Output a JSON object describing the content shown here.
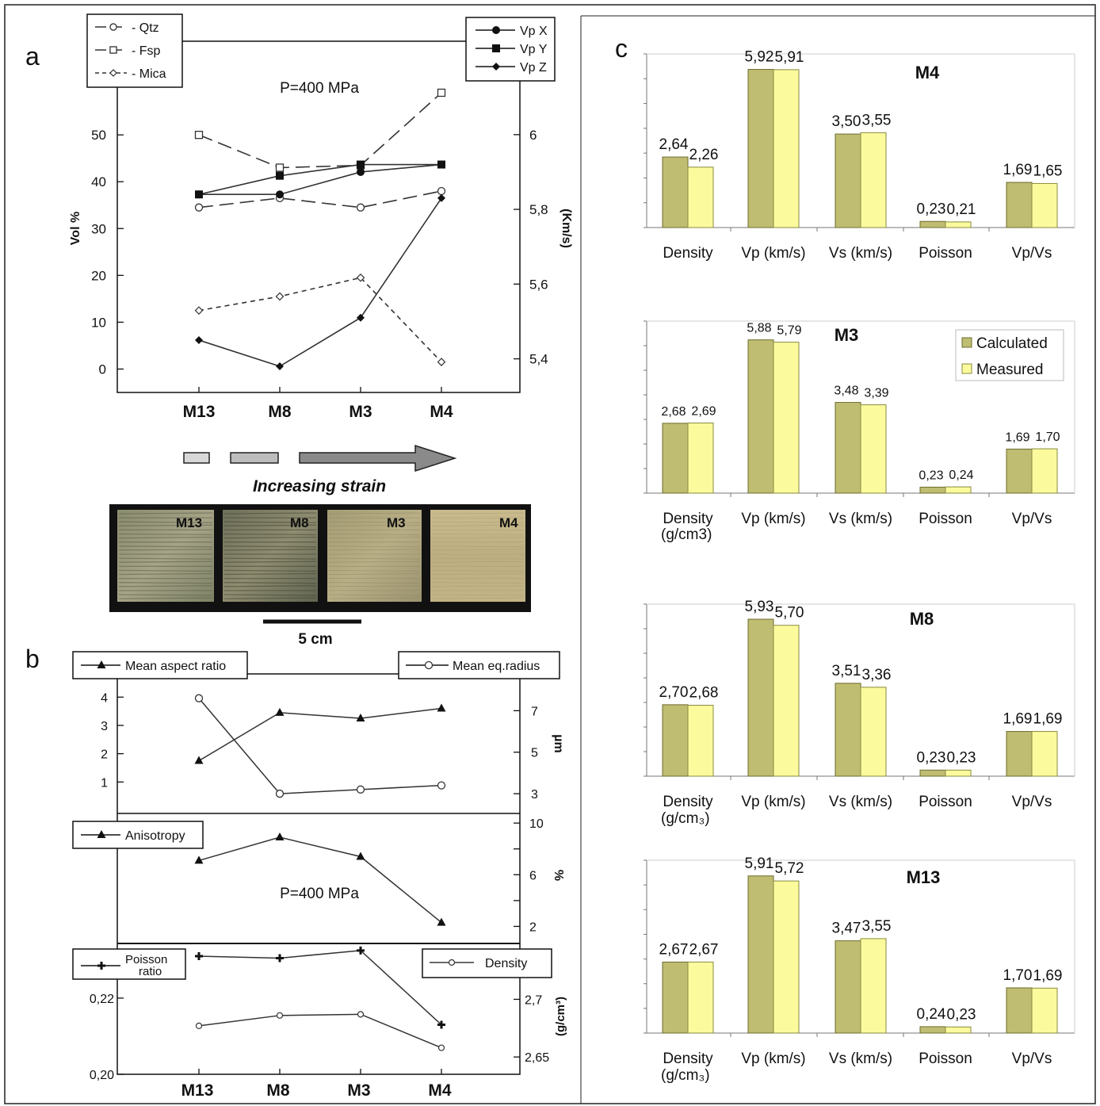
{
  "colors": {
    "calculated": "#bfbd72",
    "measured": "#fbfb9e",
    "calc_stroke": "#6d6b2c",
    "meas_stroke": "#8a8a40"
  },
  "panel_labels": {
    "a": "a",
    "b": "b",
    "c": "c"
  },
  "samples": [
    "M13",
    "M8",
    "M3",
    "M4"
  ],
  "strain_label": "Increasing strain",
  "scale_label": "5 cm",
  "photo_labels": [
    "M13",
    "M8",
    "M3",
    "M4"
  ],
  "chart_data": [
    {
      "id": "a",
      "type": "line",
      "categories": [
        "M13",
        "M8",
        "M3",
        "M4"
      ],
      "annotation": "P=400 MPa",
      "ylabel": "Vol %",
      "ylim": [
        -5,
        70
      ],
      "yticks": [
        0,
        10,
        20,
        30,
        40,
        50
      ],
      "y2label": "(Km/s)",
      "y2lim": [
        5.31,
        6.25
      ],
      "y2ticks": [
        "6",
        "5,8",
        "5,6",
        "5,4"
      ],
      "legend_left": [
        "- Qtz",
        "- Fsp",
        "- Mica"
      ],
      "legend_right": [
        "Vp X",
        "Vp Y",
        "Vp Z"
      ],
      "series": [
        {
          "name": "- Qtz",
          "axis": "left",
          "marker": "open-circle",
          "dash": "long",
          "values": [
            34.5,
            36.5,
            34.5,
            38
          ]
        },
        {
          "name": "- Fsp",
          "axis": "left",
          "marker": "open-square",
          "dash": "long",
          "values": [
            50,
            43,
            43.5,
            59
          ]
        },
        {
          "name": "- Mica",
          "axis": "left",
          "marker": "open-diamond",
          "dash": "short",
          "values": [
            12.5,
            15.5,
            19.5,
            1.5
          ]
        },
        {
          "name": "Vp X",
          "axis": "right",
          "marker": "circle",
          "dash": "solid",
          "values": [
            5.84,
            5.84,
            5.9,
            5.92
          ]
        },
        {
          "name": "Vp Y",
          "axis": "right",
          "marker": "square",
          "dash": "solid",
          "values": [
            5.84,
            5.89,
            5.92,
            5.92
          ]
        },
        {
          "name": "Vp Z",
          "axis": "right",
          "marker": "diamond",
          "dash": "solid",
          "values": [
            5.45,
            5.38,
            5.51,
            5.83
          ]
        }
      ]
    },
    {
      "id": "b1",
      "type": "line",
      "categories": [
        "M13",
        "M8",
        "M3",
        "M4"
      ],
      "ylim": [
        0,
        4.4
      ],
      "yticks": [
        1,
        2,
        3,
        4
      ],
      "y2label": "µm",
      "y2lim": [
        2.2,
        8.2
      ],
      "y2ticks": [
        3,
        5,
        7
      ],
      "legend_left": [
        "Mean aspect ratio"
      ],
      "legend_right": [
        "Mean eq.radius"
      ],
      "series": [
        {
          "name": "Mean aspect ratio",
          "axis": "left",
          "marker": "triangle",
          "values": [
            1.75,
            3.45,
            3.25,
            3.6
          ]
        },
        {
          "name": "Mean eq.radius",
          "axis": "right",
          "marker": "open-circle",
          "values": [
            7.6,
            3.0,
            3.2,
            3.4
          ]
        }
      ]
    },
    {
      "id": "b2",
      "type": "line",
      "categories": [
        "M13",
        "M8",
        "M3",
        "M4"
      ],
      "annotation": "P=400 MPa",
      "y2label": "%",
      "y2lim": [
        0.8,
        10.5
      ],
      "y2ticks": [
        10,
        6,
        2
      ],
      "legend_left": [
        "Anisotropy"
      ],
      "series": [
        {
          "name": "Anisotropy",
          "axis": "right",
          "marker": "triangle",
          "values": [
            7.1,
            8.9,
            7.4,
            2.3
          ]
        }
      ]
    },
    {
      "id": "b3",
      "type": "line",
      "categories": [
        "M13",
        "M8",
        "M3",
        "M4"
      ],
      "ylim": [
        0.2,
        0.2333
      ],
      "yticks": [
        "0,22",
        "0,20"
      ],
      "y2label": "(g/cm³)",
      "y2lim": [
        2.635,
        2.745
      ],
      "y2ticks": [
        "2,7",
        "2,65"
      ],
      "legend_left": [
        "Poisson",
        "ratio"
      ],
      "legend_right": [
        "Density"
      ],
      "series": [
        {
          "name": "Poisson ratio",
          "axis": "left",
          "marker": "cross",
          "values": [
            0.231,
            0.2305,
            0.2325,
            0.213
          ]
        },
        {
          "name": "Density",
          "axis": "right",
          "marker": "small-open-circle",
          "values": [
            2.677,
            2.686,
            2.687,
            2.658
          ]
        }
      ]
    },
    {
      "id": "c-M4",
      "type": "bar",
      "title": "M4",
      "categories": [
        "Density",
        "Vp (km/s)",
        "Vs (km/s)",
        "Poisson",
        "Vp/Vs"
      ],
      "category_sub": "",
      "series": [
        {
          "name": "Calculated",
          "values": [
            2.64,
            5.92,
            3.5,
            0.23,
            1.69
          ]
        },
        {
          "name": "Measured",
          "values": [
            2.26,
            5.91,
            3.55,
            0.21,
            1.65
          ]
        }
      ],
      "labels": [
        [
          "2,64",
          "2,26"
        ],
        [
          "5,92",
          "5,91"
        ],
        [
          "3,50",
          "3,55"
        ],
        [
          "0,23",
          "0,21"
        ],
        [
          "1,69",
          "1,65"
        ]
      ]
    },
    {
      "id": "c-M3",
      "type": "bar",
      "title": "M3",
      "categories": [
        "Density",
        "Vp (km/s)",
        "Vs (km/s)",
        "Poisson",
        "Vp/Vs"
      ],
      "category_sub": "(g/cm3)",
      "legend": [
        "Calculated",
        "Measured"
      ],
      "series": [
        {
          "name": "Calculated",
          "values": [
            2.68,
            5.88,
            3.48,
            0.23,
            1.69
          ]
        },
        {
          "name": "Measured",
          "values": [
            2.69,
            5.79,
            3.39,
            0.24,
            1.7
          ]
        }
      ],
      "labels": [
        [
          "2,68",
          "2,69"
        ],
        [
          "5,88",
          "5,79"
        ],
        [
          "3,48",
          "3,39"
        ],
        [
          "0,23",
          "0,24"
        ],
        [
          "1,69",
          "1,70"
        ]
      ]
    },
    {
      "id": "c-M8",
      "type": "bar",
      "title": "M8",
      "categories": [
        "Density",
        "Vp (km/s)",
        "Vs (km/s)",
        "Poisson",
        "Vp/Vs"
      ],
      "category_sub": "(g/cm₃)",
      "series": [
        {
          "name": "Calculated",
          "values": [
            2.7,
            5.93,
            3.51,
            0.23,
            1.69
          ]
        },
        {
          "name": "Measured",
          "values": [
            2.68,
            5.7,
            3.36,
            0.23,
            1.69
          ]
        }
      ],
      "labels": [
        [
          "2,70",
          "2,68"
        ],
        [
          "5,93",
          "5,70"
        ],
        [
          "3,51",
          "3,36"
        ],
        [
          "0,23",
          "0,23"
        ],
        [
          "1,69",
          "1,69"
        ]
      ]
    },
    {
      "id": "c-M13",
      "type": "bar",
      "title": "M13",
      "categories": [
        "Density",
        "Vp (km/s)",
        "Vs (km/s)",
        "Poisson",
        "Vp/Vs"
      ],
      "category_sub": "(g/cm₃)",
      "series": [
        {
          "name": "Calculated",
          "values": [
            2.67,
            5.91,
            3.47,
            0.24,
            1.7
          ]
        },
        {
          "name": "Measured",
          "values": [
            2.67,
            5.72,
            3.55,
            0.23,
            1.69
          ]
        }
      ],
      "labels": [
        [
          "2,67",
          "2,67"
        ],
        [
          "5,91",
          "5,72"
        ],
        [
          "3,47",
          "3,55"
        ],
        [
          "0,24",
          "0,23"
        ],
        [
          "1,70",
          "1,69"
        ]
      ]
    }
  ]
}
